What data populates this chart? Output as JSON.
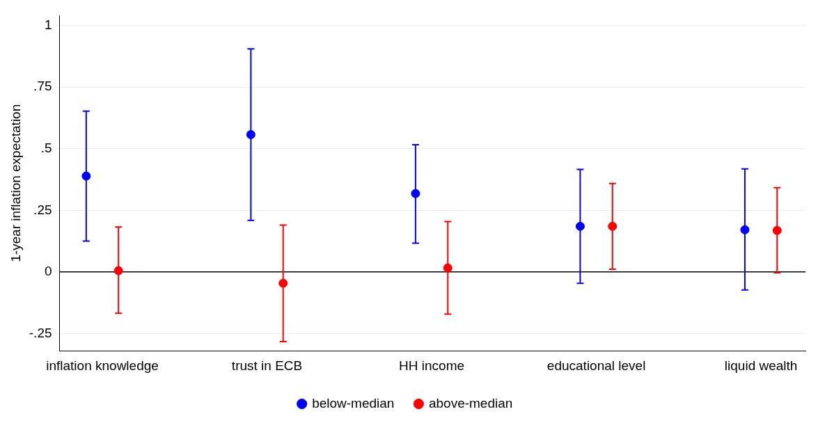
{
  "chart_data": {
    "type": "scatter",
    "ylabel": "1-year inflation expectation",
    "categories": [
      "inflation knowledge",
      "trust in ECB",
      "HH income",
      "educational level",
      "liquid wealth"
    ],
    "series": [
      {
        "name": "below-median",
        "color": "#0000ff",
        "values": [
          0.389,
          0.557,
          0.318,
          0.185,
          0.171
        ],
        "errors": [
          [
            0.125,
            0.652
          ],
          [
            0.209,
            0.905
          ],
          [
            0.117,
            0.516
          ],
          [
            -0.046,
            0.416
          ],
          [
            -0.073,
            0.418
          ]
        ]
      },
      {
        "name": "above-median",
        "color": "#ff0000",
        "values": [
          0.005,
          -0.046,
          0.016,
          0.185,
          0.168
        ],
        "errors": [
          [
            -0.168,
            0.182
          ],
          [
            -0.283,
            0.19
          ],
          [
            -0.171,
            0.204
          ],
          [
            0.011,
            0.359
          ],
          [
            -0.003,
            0.342
          ]
        ]
      }
    ],
    "ylim": [
      -0.32,
      1.04
    ],
    "yticks": [
      {
        "value": -0.25,
        "label": "-.25"
      },
      {
        "value": 0,
        "label": "0"
      },
      {
        "value": 0.25,
        "label": ".25"
      },
      {
        "value": 0.5,
        "label": ".5"
      },
      {
        "value": 0.75,
        "label": ".75"
      },
      {
        "value": 1,
        "label": "1"
      }
    ],
    "ref_lines": [
      {
        "axis": "y",
        "value": 0,
        "color": "#000000"
      }
    ],
    "grid": "y",
    "legend": "bottom",
    "marker": "circle"
  }
}
